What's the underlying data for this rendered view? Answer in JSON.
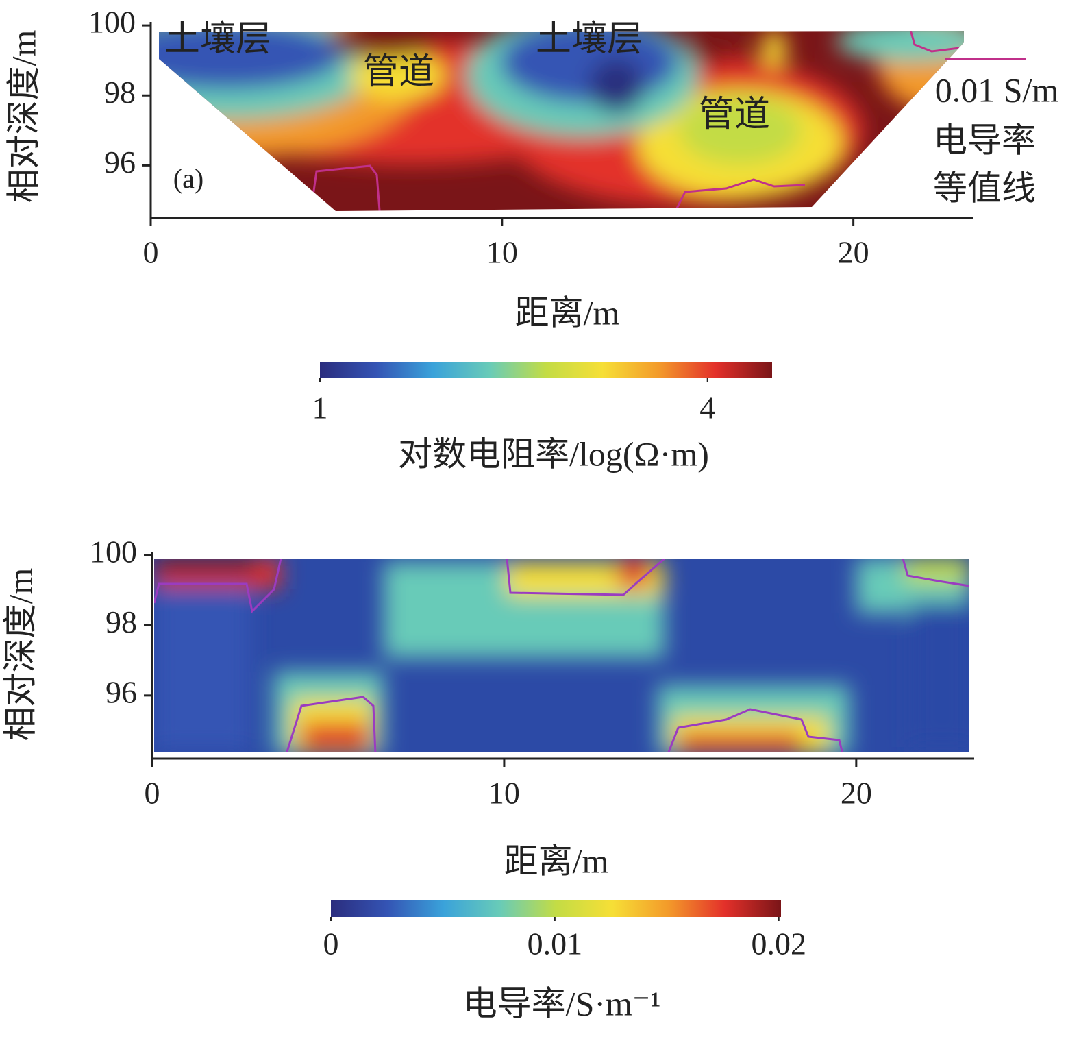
{
  "chart_data": [
    {
      "type": "heatmap",
      "x_label": "距离/m",
      "y_label": "相对深度/m",
      "xlim": [
        0,
        23.4
      ],
      "xticks": [
        0,
        10,
        20
      ],
      "ylim": [
        94.5,
        100.1
      ],
      "yticks": [
        96,
        98,
        100
      ],
      "colorbar": {
        "label": "对数电阻率/log(Ω·m)",
        "lim": [
          1,
          4.5
        ],
        "ticks": [
          1,
          4
        ]
      },
      "colormap": [
        "#2b2d7e",
        "#3454b4",
        "#3aa2da",
        "#68cbb8",
        "#c3dc45",
        "#f6df36",
        "#f39a2a",
        "#e3302a",
        "#7a1518"
      ],
      "contour_color": "#c0308a",
      "annotations": [
        "土壤层",
        "管道",
        "土壤层",
        "管道",
        "(a)",
        "0.01 S/m",
        "电导率",
        "等值线"
      ]
    },
    {
      "type": "heatmap",
      "x_label": "距离/m",
      "y_label": "相对深度/m",
      "xlim": [
        0,
        23.35
      ],
      "xticks": [
        0,
        10,
        20
      ],
      "ylim": [
        94.2,
        100.1
      ],
      "yticks": [
        96,
        98,
        100
      ],
      "colorbar": {
        "label": "电导率/S·m⁻¹",
        "lim": [
          0,
          0.0201
        ],
        "ticks": [
          0,
          0.01,
          0.02
        ]
      },
      "colormap": [
        "#2b2d7e",
        "#3454b4",
        "#3aa2da",
        "#68cbb8",
        "#c3dc45",
        "#f6df36",
        "#f39a2a",
        "#e3302a",
        "#7a1518"
      ],
      "contour_color": "#9a3cc0"
    }
  ]
}
